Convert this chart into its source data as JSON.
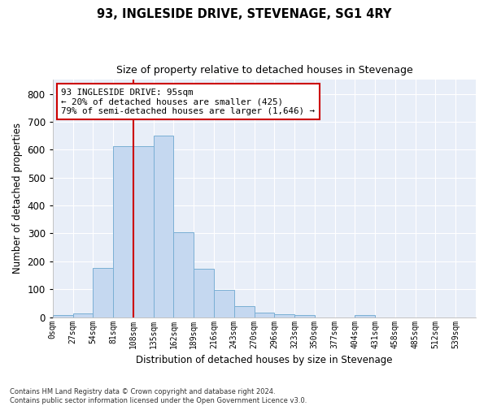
{
  "title": "93, INGLESIDE DRIVE, STEVENAGE, SG1 4RY",
  "subtitle": "Size of property relative to detached houses in Stevenage",
  "xlabel": "Distribution of detached houses by size in Stevenage",
  "ylabel": "Number of detached properties",
  "bar_color": "#c5d8f0",
  "bar_edge_color": "#7aafd4",
  "background_color": "#e8eef8",
  "grid_color": "#ffffff",
  "annotation_box_color": "#cc0000",
  "vline_color": "#cc0000",
  "tick_labels": [
    "0sqm",
    "27sqm",
    "54sqm",
    "81sqm",
    "108sqm",
    "135sqm",
    "162sqm",
    "189sqm",
    "216sqm",
    "243sqm",
    "270sqm",
    "296sqm",
    "323sqm",
    "350sqm",
    "377sqm",
    "404sqm",
    "431sqm",
    "458sqm",
    "485sqm",
    "512sqm",
    "539sqm"
  ],
  "bar_values": [
    8,
    13,
    175,
    612,
    612,
    650,
    305,
    172,
    98,
    40,
    15,
    10,
    8,
    0,
    0,
    8,
    0,
    0,
    0,
    0,
    0
  ],
  "vline_x": 4.0,
  "annotation_text": "93 INGLESIDE DRIVE: 95sqm\n← 20% of detached houses are smaller (425)\n79% of semi-detached houses are larger (1,646) →",
  "ylim": [
    0,
    850
  ],
  "yticks": [
    0,
    100,
    200,
    300,
    400,
    500,
    600,
    700,
    800
  ],
  "footer": "Contains HM Land Registry data © Crown copyright and database right 2024.\nContains public sector information licensed under the Open Government Licence v3.0.",
  "figsize": [
    6.0,
    5.0
  ],
  "dpi": 100
}
